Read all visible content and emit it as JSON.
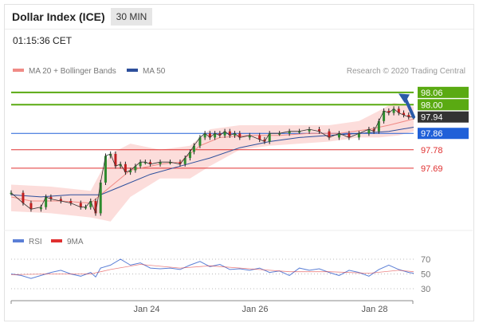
{
  "header": {
    "title": "Dollar Index (ICE)",
    "timeframe": "30 MIN",
    "time": "01:15:36 CET"
  },
  "legend": [
    {
      "label": "MA 20 + Bollinger Bands",
      "color": "#f08b86"
    },
    {
      "label": "MA 50",
      "color": "#2d4f9c"
    }
  ],
  "rsi_legend": [
    {
      "label": "RSI",
      "color": "#5b7fd6"
    },
    {
      "label": "9MA",
      "color": "#e03030"
    }
  ],
  "credit": "Research © 2020 Trading Central",
  "chart_data": {
    "type": "line",
    "title": "Dollar Index (ICE)",
    "ylim": [
      97.39,
      98.11
    ],
    "levels": [
      {
        "label": "98.06",
        "value": 98.06,
        "color": "#5aaa12"
      },
      {
        "label": "98.00",
        "value": 98.0,
        "color": "#5aaa12"
      },
      {
        "label": "97.94",
        "value": 97.94,
        "color": "#333333"
      },
      {
        "label": "97.86",
        "value": 97.86,
        "color": "#2060d8"
      },
      {
        "label": "97.78",
        "value": 97.78,
        "color": "#e03030"
      },
      {
        "label": "97.69",
        "value": 97.69,
        "color": "#e03030"
      }
    ],
    "x_ticks": [
      "Jan 24",
      "Jan 26",
      "Jan 28"
    ],
    "price_path": [
      [
        0,
        97.57
      ],
      [
        12,
        97.52
      ],
      [
        20,
        97.49
      ],
      [
        30,
        97.5
      ],
      [
        35,
        97.55
      ],
      [
        40,
        97.54
      ],
      [
        50,
        97.53
      ],
      [
        60,
        97.52
      ],
      [
        70,
        97.5
      ],
      [
        75,
        97.5
      ],
      [
        80,
        97.53
      ],
      [
        85,
        97.47
      ],
      [
        90,
        97.62
      ],
      [
        95,
        97.75
      ],
      [
        100,
        97.76
      ],
      [
        105,
        97.7
      ],
      [
        110,
        97.71
      ],
      [
        115,
        97.67
      ],
      [
        120,
        97.68
      ],
      [
        125,
        97.7
      ],
      [
        130,
        97.72
      ],
      [
        135,
        97.72
      ],
      [
        140,
        97.71
      ],
      [
        150,
        97.72
      ],
      [
        160,
        97.72
      ],
      [
        170,
        97.71
      ],
      [
        175,
        97.74
      ],
      [
        180,
        97.77
      ],
      [
        184,
        97.8
      ],
      [
        190,
        97.84
      ],
      [
        195,
        97.86
      ],
      [
        200,
        97.84
      ],
      [
        205,
        97.86
      ],
      [
        210,
        97.85
      ],
      [
        215,
        97.87
      ],
      [
        220,
        97.85
      ],
      [
        225,
        97.86
      ],
      [
        230,
        97.84
      ],
      [
        240,
        97.85
      ],
      [
        250,
        97.83
      ],
      [
        255,
        97.82
      ],
      [
        260,
        97.86
      ],
      [
        270,
        97.86
      ],
      [
        280,
        97.87
      ],
      [
        290,
        97.87
      ],
      [
        300,
        97.88
      ],
      [
        310,
        97.87
      ],
      [
        320,
        97.84
      ],
      [
        330,
        97.86
      ],
      [
        340,
        97.84
      ],
      [
        350,
        97.86
      ],
      [
        360,
        97.88
      ],
      [
        365,
        97.87
      ],
      [
        370,
        97.92
      ],
      [
        375,
        97.97
      ],
      [
        380,
        97.96
      ],
      [
        385,
        97.98
      ],
      [
        390,
        97.96
      ],
      [
        395,
        97.95
      ],
      [
        400,
        97.94
      ],
      [
        405,
        97.94
      ]
    ],
    "ma50_path": [
      [
        0,
        97.56
      ],
      [
        30,
        97.55
      ],
      [
        60,
        97.56
      ],
      [
        90,
        97.56
      ],
      [
        110,
        97.6
      ],
      [
        140,
        97.66
      ],
      [
        170,
        97.7
      ],
      [
        200,
        97.74
      ],
      [
        230,
        97.79
      ],
      [
        260,
        97.82
      ],
      [
        290,
        97.84
      ],
      [
        320,
        97.85
      ],
      [
        350,
        97.86
      ],
      [
        380,
        97.87
      ],
      [
        405,
        97.89
      ]
    ],
    "ma20_path": [
      [
        0,
        97.55
      ],
      [
        20,
        97.53
      ],
      [
        50,
        97.53
      ],
      [
        80,
        97.52
      ],
      [
        100,
        97.6
      ],
      [
        120,
        97.68
      ],
      [
        150,
        97.71
      ],
      [
        170,
        97.72
      ],
      [
        190,
        97.8
      ],
      [
        210,
        97.84
      ],
      [
        240,
        97.85
      ],
      [
        270,
        97.85
      ],
      [
        300,
        97.86
      ],
      [
        330,
        97.86
      ],
      [
        360,
        97.88
      ],
      [
        380,
        97.9
      ],
      [
        405,
        97.93
      ]
    ],
    "bollinger_upper": [
      [
        0,
        97.61
      ],
      [
        40,
        97.6
      ],
      [
        80,
        97.58
      ],
      [
        100,
        97.76
      ],
      [
        120,
        97.81
      ],
      [
        150,
        97.78
      ],
      [
        180,
        97.8
      ],
      [
        200,
        97.88
      ],
      [
        230,
        97.9
      ],
      [
        260,
        97.9
      ],
      [
        290,
        97.9
      ],
      [
        320,
        97.9
      ],
      [
        350,
        97.92
      ],
      [
        370,
        97.97
      ],
      [
        385,
        98.01
      ],
      [
        405,
        97.99
      ]
    ],
    "bollinger_lower": [
      [
        0,
        97.48
      ],
      [
        40,
        97.47
      ],
      [
        80,
        97.45
      ],
      [
        100,
        97.43
      ],
      [
        120,
        97.55
      ],
      [
        150,
        97.64
      ],
      [
        180,
        97.64
      ],
      [
        200,
        97.7
      ],
      [
        230,
        97.78
      ],
      [
        260,
        97.8
      ],
      [
        290,
        97.81
      ],
      [
        320,
        97.82
      ],
      [
        350,
        97.84
      ],
      [
        370,
        97.84
      ],
      [
        390,
        97.85
      ],
      [
        405,
        97.87
      ]
    ],
    "rsi": {
      "ticks": [
        70,
        50,
        30
      ],
      "rsi_path": [
        [
          0,
          50
        ],
        [
          10,
          48
        ],
        [
          20,
          44
        ],
        [
          30,
          48
        ],
        [
          40,
          52
        ],
        [
          50,
          55
        ],
        [
          60,
          50
        ],
        [
          70,
          47
        ],
        [
          80,
          52
        ],
        [
          85,
          46
        ],
        [
          90,
          58
        ],
        [
          100,
          62
        ],
        [
          110,
          70
        ],
        [
          120,
          62
        ],
        [
          130,
          65
        ],
        [
          140,
          58
        ],
        [
          150,
          57
        ],
        [
          160,
          58
        ],
        [
          170,
          56
        ],
        [
          180,
          62
        ],
        [
          190,
          67
        ],
        [
          200,
          60
        ],
        [
          210,
          63
        ],
        [
          220,
          56
        ],
        [
          230,
          57
        ],
        [
          240,
          55
        ],
        [
          250,
          58
        ],
        [
          260,
          52
        ],
        [
          270,
          54
        ],
        [
          280,
          48
        ],
        [
          290,
          58
        ],
        [
          300,
          55
        ],
        [
          310,
          57
        ],
        [
          320,
          52
        ],
        [
          330,
          48
        ],
        [
          340,
          55
        ],
        [
          350,
          52
        ],
        [
          360,
          47
        ],
        [
          370,
          56
        ],
        [
          380,
          62
        ],
        [
          390,
          56
        ],
        [
          400,
          52
        ],
        [
          405,
          51
        ]
      ],
      "ma_path": [
        [
          0,
          49
        ],
        [
          40,
          50
        ],
        [
          80,
          50
        ],
        [
          100,
          56
        ],
        [
          130,
          63
        ],
        [
          170,
          58
        ],
        [
          200,
          61
        ],
        [
          240,
          57
        ],
        [
          280,
          53
        ],
        [
          320,
          53
        ],
        [
          360,
          51
        ],
        [
          390,
          55
        ],
        [
          405,
          53
        ]
      ]
    }
  }
}
